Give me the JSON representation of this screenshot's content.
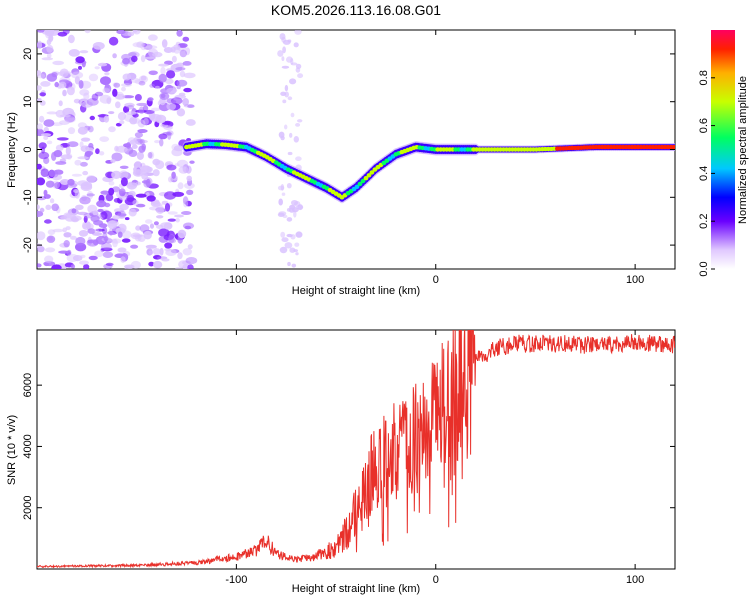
{
  "title": "KOM5.2026.113.16.08.G01",
  "chart_data": [
    {
      "type": "heatmap",
      "name": "spectrogram",
      "xlabel": "Height of straight line (km)",
      "ylabel": "Frequency (Hz)",
      "xlim": [
        -200,
        120
      ],
      "ylim": [
        -25,
        25
      ],
      "xticks": [
        -100,
        0,
        100
      ],
      "yticks": [
        -20,
        -10,
        0,
        10,
        20
      ],
      "ridge": {
        "description": "peak frequency track",
        "x": [
          -125,
          -115,
          -105,
          -95,
          -85,
          -75,
          -65,
          -55,
          -47,
          -40,
          -30,
          -20,
          -10,
          0,
          20,
          50,
          80,
          120
        ],
        "y": [
          0.5,
          1.2,
          1.0,
          0.5,
          -1.5,
          -4.0,
          -6.0,
          -8.0,
          -10.0,
          -8.0,
          -4.0,
          -1.0,
          0.5,
          0.0,
          0.0,
          0.0,
          0.5,
          0.5
        ]
      },
      "noise_region_x": [
        -200,
        -122
      ],
      "colorbar": {
        "label": "Normalized spectral amplitude",
        "range": [
          0.0,
          1.0
        ],
        "ticks": [
          0.0,
          0.2,
          0.4,
          0.6,
          0.8
        ]
      }
    },
    {
      "type": "line",
      "name": "snr",
      "xlabel": "Height of straight line (km)",
      "ylabel": "SNR (10 * v/v)",
      "xlim": [
        -200,
        120
      ],
      "ylim": [
        0,
        7800
      ],
      "xticks": [
        -100,
        0,
        100
      ],
      "yticks": [
        2000,
        4000,
        6000
      ],
      "color": "#e8302a",
      "envelope": {
        "x": [
          -200,
          -150,
          -120,
          -100,
          -90,
          -85,
          -80,
          -70,
          -60,
          -50,
          -45,
          -40,
          -35,
          -30,
          -20,
          -10,
          0,
          10,
          20,
          30,
          40,
          60,
          80,
          100,
          120
        ],
        "y": [
          80,
          120,
          200,
          400,
          600,
          900,
          500,
          300,
          400,
          700,
          1200,
          1800,
          2600,
          3400,
          3800,
          4200,
          4800,
          5800,
          6800,
          7200,
          7350,
          7350,
          7300,
          7400,
          7300
        ]
      }
    }
  ]
}
